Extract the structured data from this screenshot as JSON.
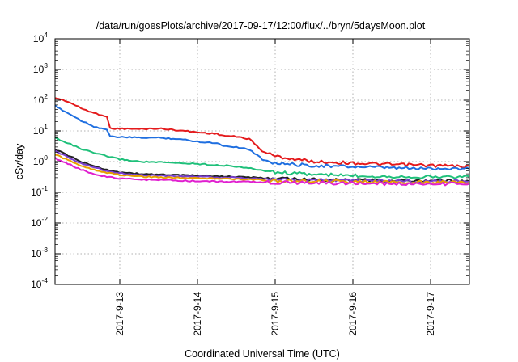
{
  "chart_data": {
    "type": "line",
    "title": "/data/run/goesPlots/archive/2017-09-17/12:00/flux/../bryn/5daysMoon.plot",
    "xlabel": "Coordinated Universal Time (UTC)",
    "ylabel": "cSv/day",
    "yscale": "log",
    "ylim": [
      0.0001,
      10000
    ],
    "xlim": [
      "2017-09-12T04:00",
      "2017-09-17T12:00"
    ],
    "grid": true,
    "legend": "none",
    "x_ticks": [
      "2017-9-13",
      "2017-9-14",
      "2017-9-15",
      "2017-9-16",
      "2017-9-17"
    ],
    "y_ticks": [
      {
        "value": 0.0001,
        "base": "10",
        "exp": "-4"
      },
      {
        "value": 0.001,
        "base": "10",
        "exp": "-3"
      },
      {
        "value": 0.01,
        "base": "10",
        "exp": "-2"
      },
      {
        "value": 0.1,
        "base": "10",
        "exp": "-1"
      },
      {
        "value": 1,
        "base": "10",
        "exp": "0"
      },
      {
        "value": 10,
        "base": "10",
        "exp": "1"
      },
      {
        "value": 100,
        "base": "10",
        "exp": "2"
      },
      {
        "value": 1000,
        "base": "10",
        "exp": "3"
      },
      {
        "value": 10000,
        "base": "10",
        "exp": "4"
      }
    ],
    "series": [
      {
        "color": "#e41a1c",
        "x": [
          "2017-09-12T04:00",
          "2017-09-12T08:00",
          "2017-09-12T12:00",
          "2017-09-12T16:00",
          "2017-09-12T20:00",
          "2017-09-12T21:00",
          "2017-09-13T06:00",
          "2017-09-13T12:00",
          "2017-09-13T18:00",
          "2017-09-14T00:00",
          "2017-09-14T06:00",
          "2017-09-14T08:00",
          "2017-09-14T12:00",
          "2017-09-14T16:00",
          "2017-09-14T20:00",
          "2017-09-15T00:00",
          "2017-09-15T06:00",
          "2017-09-15T12:00",
          "2017-09-15T18:00",
          "2017-09-16T00:00",
          "2017-09-16T06:00",
          "2017-09-16T12:00",
          "2017-09-16T18:00",
          "2017-09-17T00:00",
          "2017-09-17T06:00",
          "2017-09-17T12:00"
        ],
        "values": [
          120,
          90,
          55,
          38,
          30,
          12,
          11.5,
          12,
          10.5,
          9,
          8,
          7,
          6.5,
          5.5,
          2.2,
          1.5,
          1.2,
          1.0,
          0.95,
          0.9,
          0.85,
          0.8,
          0.78,
          0.75,
          0.72,
          0.7
        ]
      },
      {
        "color": "#1f6fe0",
        "x": [
          "2017-09-12T04:00",
          "2017-09-12T08:00",
          "2017-09-12T12:00",
          "2017-09-12T16:00",
          "2017-09-12T20:00",
          "2017-09-12T21:00",
          "2017-09-13T06:00",
          "2017-09-13T12:00",
          "2017-09-13T18:00",
          "2017-09-14T00:00",
          "2017-09-14T06:00",
          "2017-09-14T08:00",
          "2017-09-14T12:00",
          "2017-09-14T16:00",
          "2017-09-14T20:00",
          "2017-09-15T00:00",
          "2017-09-15T06:00",
          "2017-09-15T12:00",
          "2017-09-15T18:00",
          "2017-09-16T00:00",
          "2017-09-16T06:00",
          "2017-09-16T12:00",
          "2017-09-16T18:00",
          "2017-09-17T00:00",
          "2017-09-17T06:00",
          "2017-09-17T12:00"
        ],
        "values": [
          65,
          38,
          22,
          14,
          11,
          6.5,
          6,
          6,
          5.5,
          4.5,
          4,
          3.3,
          3.0,
          2.5,
          1.2,
          0.9,
          0.8,
          0.75,
          0.7,
          0.68,
          0.65,
          0.62,
          0.6,
          0.6,
          0.6,
          0.58
        ]
      },
      {
        "color": "#1fc07a",
        "x": [
          "2017-09-12T04:00",
          "2017-09-12T08:00",
          "2017-09-12T12:00",
          "2017-09-12T16:00",
          "2017-09-12T20:00",
          "2017-09-13T00:00",
          "2017-09-13T06:00",
          "2017-09-13T12:00",
          "2017-09-14T00:00",
          "2017-09-14T12:00",
          "2017-09-15T00:00",
          "2017-09-15T12:00",
          "2017-09-16T00:00",
          "2017-09-16T12:00",
          "2017-09-17T00:00",
          "2017-09-17T12:00"
        ],
        "values": [
          6,
          4,
          2.6,
          1.9,
          1.5,
          1.2,
          1.0,
          0.95,
          0.85,
          0.7,
          0.45,
          0.38,
          0.35,
          0.33,
          0.32,
          0.32
        ]
      },
      {
        "color": "#222222",
        "x": [
          "2017-09-12T04:00",
          "2017-09-12T08:00",
          "2017-09-12T12:00",
          "2017-09-12T16:00",
          "2017-09-12T20:00",
          "2017-09-13T00:00",
          "2017-09-13T06:00",
          "2017-09-13T12:00",
          "2017-09-14T00:00",
          "2017-09-14T12:00",
          "2017-09-15T00:00",
          "2017-09-15T12:00",
          "2017-09-16T00:00",
          "2017-09-16T12:00",
          "2017-09-17T00:00",
          "2017-09-17T12:00"
        ],
        "values": [
          2.5,
          1.6,
          1.0,
          0.7,
          0.55,
          0.45,
          0.4,
          0.38,
          0.35,
          0.32,
          0.28,
          0.26,
          0.25,
          0.24,
          0.24,
          0.23
        ]
      },
      {
        "color": "#7b3fd0",
        "x": [
          "2017-09-12T04:00",
          "2017-09-12T08:00",
          "2017-09-12T12:00",
          "2017-09-12T16:00",
          "2017-09-12T20:00",
          "2017-09-13T00:00",
          "2017-09-13T06:00",
          "2017-09-13T12:00",
          "2017-09-14T00:00",
          "2017-09-14T12:00",
          "2017-09-15T00:00",
          "2017-09-15T12:00",
          "2017-09-16T00:00",
          "2017-09-16T12:00",
          "2017-09-17T00:00",
          "2017-09-17T12:00"
        ],
        "values": [
          2.2,
          1.4,
          0.9,
          0.65,
          0.5,
          0.42,
          0.37,
          0.35,
          0.32,
          0.3,
          0.26,
          0.25,
          0.24,
          0.23,
          0.23,
          0.22
        ]
      },
      {
        "color": "#e8a000",
        "x": [
          "2017-09-12T04:00",
          "2017-09-12T08:00",
          "2017-09-12T12:00",
          "2017-09-12T16:00",
          "2017-09-12T20:00",
          "2017-09-13T00:00",
          "2017-09-13T06:00",
          "2017-09-13T12:00",
          "2017-09-14T00:00",
          "2017-09-14T12:00",
          "2017-09-15T00:00",
          "2017-09-15T12:00",
          "2017-09-16T00:00",
          "2017-09-16T12:00",
          "2017-09-17T00:00",
          "2017-09-17T12:00"
        ],
        "values": [
          1.7,
          1.1,
          0.75,
          0.55,
          0.44,
          0.37,
          0.33,
          0.31,
          0.29,
          0.27,
          0.24,
          0.23,
          0.22,
          0.21,
          0.21,
          0.21
        ]
      },
      {
        "color": "#e020d0",
        "x": [
          "2017-09-12T04:00",
          "2017-09-12T08:00",
          "2017-09-12T12:00",
          "2017-09-12T16:00",
          "2017-09-12T20:00",
          "2017-09-13T00:00",
          "2017-09-13T06:00",
          "2017-09-13T12:00",
          "2017-09-14T00:00",
          "2017-09-14T12:00",
          "2017-09-15T00:00",
          "2017-09-15T12:00",
          "2017-09-16T00:00",
          "2017-09-16T12:00",
          "2017-09-17T00:00",
          "2017-09-17T12:00"
        ],
        "values": [
          1.3,
          0.85,
          0.55,
          0.4,
          0.32,
          0.28,
          0.26,
          0.25,
          0.23,
          0.22,
          0.21,
          0.2,
          0.2,
          0.19,
          0.19,
          0.19
        ]
      }
    ]
  }
}
